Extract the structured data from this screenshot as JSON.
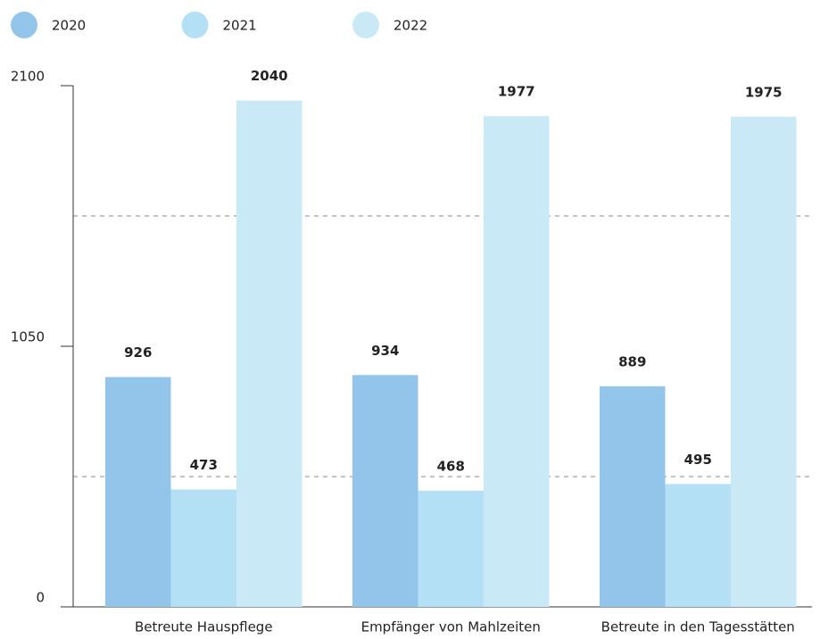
{
  "chart_data": {
    "type": "bar",
    "categories": [
      "Betreute Hauspflege",
      "Empfänger von Mahlzeiten",
      "Betreute in den Tagesstätten"
    ],
    "series": [
      {
        "name": "2020",
        "color": "#93c5ea",
        "values": [
          926,
          934,
          889
        ]
      },
      {
        "name": "2021",
        "color": "#b3e0f5",
        "values": [
          473,
          468,
          495
        ]
      },
      {
        "name": "2022",
        "color": "#c9e9f6",
        "values": [
          2040,
          1977,
          1975
        ]
      }
    ],
    "ylim": [
      0,
      2100
    ],
    "yticks": [
      0,
      1050,
      2100
    ],
    "grid_lines": [
      525,
      1575
    ],
    "legend": "top-left"
  }
}
